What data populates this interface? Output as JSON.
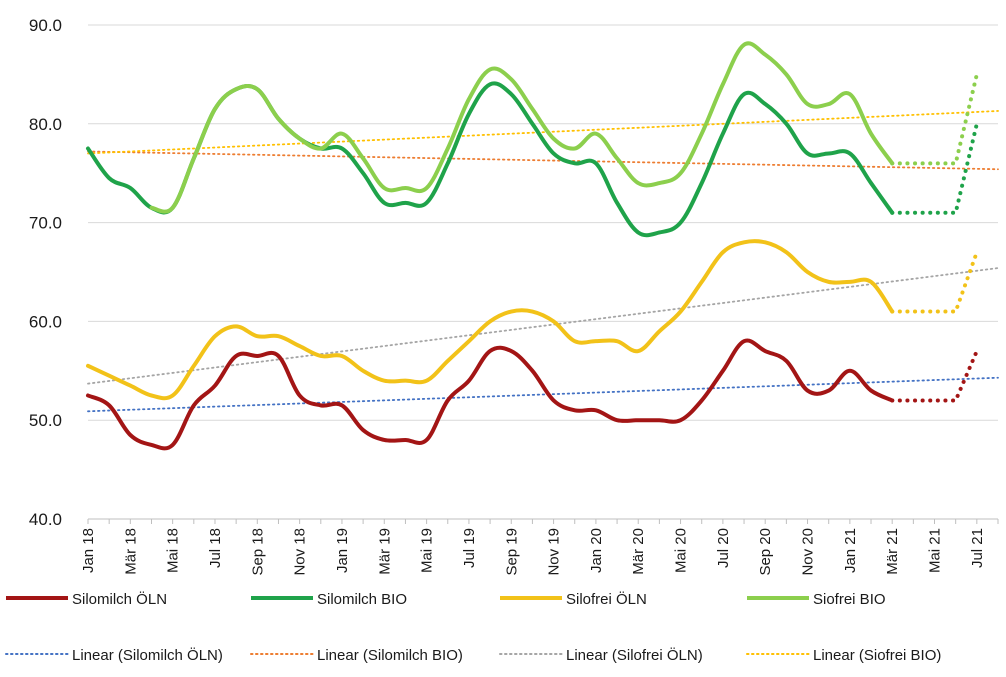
{
  "chart_data": {
    "type": "line",
    "title": "",
    "xlabel": "",
    "ylabel": "",
    "ylim": [
      40,
      90
    ],
    "yticks": [
      "40.0",
      "50.0",
      "60.0",
      "70.0",
      "80.0",
      "90.0"
    ],
    "grid": "horizontal",
    "legend_position": "bottom",
    "x_labels": [
      "Jan 18",
      "Mär 18",
      "Mai 18",
      "Jul 18",
      "Sep 18",
      "Nov 18",
      "Jan 19",
      "Mär 19",
      "Mai 19",
      "Jul 19",
      "Sep 19",
      "Nov 19",
      "Jan 20",
      "Mär 20",
      "Mai 20",
      "Jul 20",
      "Sep 20",
      "Nov 20",
      "Jan 21",
      "Mär 21",
      "Mai 21",
      "Jul 21"
    ],
    "x_label_month_index": [
      0,
      2,
      4,
      6,
      8,
      10,
      12,
      14,
      16,
      18,
      20,
      22,
      24,
      26,
      28,
      30,
      32,
      34,
      36,
      38,
      40,
      42
    ],
    "series": [
      {
        "name": "Silomilch ÖLN",
        "color": "#a31515",
        "style": "solid",
        "values": [
          52.5,
          51.5,
          48.5,
          47.5,
          47.5,
          51.5,
          53.5,
          56.5,
          56.5,
          56.5,
          52.5,
          51.5,
          51.5,
          49.0,
          48.0,
          48.0,
          48.0,
          52.0,
          54.0,
          57.0,
          57.0,
          55.0,
          52.0,
          51.0,
          51.0,
          50.0,
          50.0,
          50.0,
          50.0,
          52.0,
          55.0,
          58.0,
          57.0,
          56.0,
          53.0,
          53.0,
          55.0,
          53.0,
          52.0
        ]
      },
      {
        "name": "Silomilch BIO",
        "color": "#1fa34a",
        "style": "solid",
        "values": [
          77.5,
          74.5,
          73.5,
          71.5,
          71.5,
          76.5,
          81.5,
          83.5,
          83.5,
          80.5,
          78.5,
          77.5,
          77.5,
          75.0,
          72.0,
          72.0,
          72.0,
          76.0,
          81.0,
          84.0,
          83.0,
          80.0,
          77.0,
          76.0,
          76.0,
          72.0,
          69.0,
          69.0,
          70.0,
          74.0,
          79.0,
          83.0,
          82.0,
          80.0,
          77.0,
          77.0,
          77.0,
          74.0,
          71.0
        ]
      },
      {
        "name": "Silofrei ÖLN",
        "color": "#f2c219",
        "style": "solid",
        "values": [
          55.5,
          54.5,
          53.5,
          52.5,
          52.5,
          55.5,
          58.5,
          59.5,
          58.5,
          58.5,
          57.5,
          56.5,
          56.5,
          55.0,
          54.0,
          54.0,
          54.0,
          56.0,
          58.0,
          60.0,
          61.0,
          61.0,
          60.0,
          58.0,
          58.0,
          58.0,
          57.0,
          59.0,
          61.0,
          64.0,
          67.0,
          68.0,
          68.0,
          67.0,
          65.0,
          64.0,
          64.0,
          64.0,
          61.0
        ]
      },
      {
        "name": "Siofrei BIO",
        "color": "#8ccf4d",
        "style": "solid",
        "values": [
          77.5,
          null,
          null,
          71.5,
          71.5,
          76.5,
          81.5,
          83.5,
          83.5,
          80.5,
          78.5,
          77.5,
          79.0,
          76.5,
          73.5,
          73.5,
          73.5,
          77.5,
          82.5,
          85.5,
          84.5,
          81.5,
          78.5,
          77.5,
          79.0,
          76.5,
          74.0,
          74.0,
          75.0,
          79.0,
          84.0,
          88.0,
          87.0,
          85.0,
          82.0,
          82.0,
          83.0,
          79.0,
          76.0
        ]
      }
    ],
    "forecast": [
      {
        "series": "Silomilch ÖLN",
        "color": "#a31515",
        "month_index": [
          38,
          39,
          40,
          41,
          42
        ],
        "values": [
          52.0,
          52.0,
          52.0,
          52.0,
          57.0
        ]
      },
      {
        "series": "Silomilch BIO",
        "color": "#1fa34a",
        "month_index": [
          38,
          39,
          40,
          41,
          42
        ],
        "values": [
          71.0,
          71.0,
          71.0,
          71.0,
          80.0
        ]
      },
      {
        "series": "Silofrei ÖLN",
        "color": "#f2c219",
        "month_index": [
          38,
          39,
          40,
          41,
          42
        ],
        "values": [
          61.0,
          61.0,
          61.0,
          61.0,
          67.0
        ]
      },
      {
        "series": "Siofrei BIO",
        "color": "#8ccf4d",
        "month_index": [
          38,
          39,
          40,
          41,
          42
        ],
        "values": [
          76.0,
          76.0,
          76.0,
          76.0,
          85.0
        ]
      }
    ],
    "trendlines": [
      {
        "name": "Linear (Silomilch ÖLN)",
        "color": "#4472c4",
        "start": [
          0,
          50.9
        ],
        "end": [
          43,
          54.3
        ]
      },
      {
        "name": "Linear (Silomilch BIO)",
        "color": "#ed7d31",
        "start": [
          0,
          77.2
        ],
        "end": [
          43,
          75.4
        ]
      },
      {
        "name": "Linear (Silofrei ÖLN)",
        "color": "#a5a5a5",
        "start": [
          0,
          53.7
        ],
        "end": [
          43,
          65.4
        ]
      },
      {
        "name": "Linear (Siofrei BIO)",
        "color": "#ffc000",
        "start": [
          0,
          77.0
        ],
        "end": [
          43,
          81.3
        ]
      }
    ]
  }
}
